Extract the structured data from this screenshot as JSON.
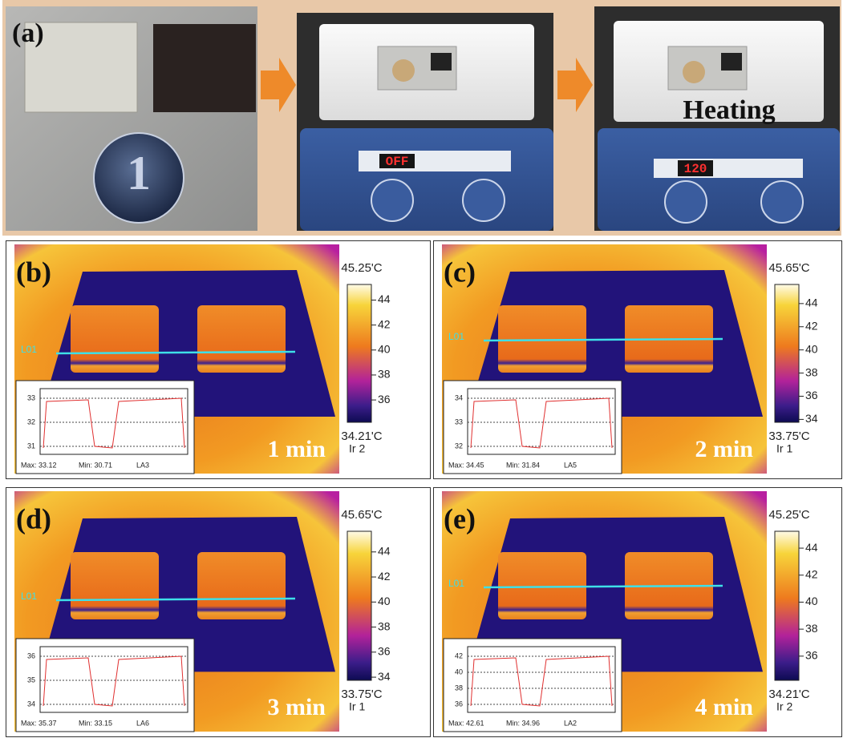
{
  "panel_a": {
    "label": "(a)",
    "heating": "Heating",
    "display_before": "OFF",
    "display_after": "120"
  },
  "panels": [
    {
      "label": "(b)",
      "time": "1 min",
      "max_temp": "45.25'C",
      "min_temp": "34.21'C",
      "source": "Ir 2",
      "line_label": "L01",
      "colorbar_ticks": [
        "44",
        "42",
        "40",
        "38",
        "36"
      ],
      "inset": {
        "yticks": [
          "33",
          "32",
          "31"
        ],
        "stats": [
          "Max: 33.12",
          "Min: 30.71",
          "LA3"
        ]
      }
    },
    {
      "label": "(c)",
      "time": "2 min",
      "max_temp": "45.65'C",
      "min_temp": "33.75'C",
      "source": "Ir 1",
      "line_label": "L01",
      "colorbar_ticks": [
        "44",
        "42",
        "40",
        "38",
        "36",
        "34"
      ],
      "inset": {
        "yticks": [
          "34",
          "33",
          "32"
        ],
        "stats": [
          "Max: 34.45",
          "Min: 31.84",
          "LA5"
        ]
      }
    },
    {
      "label": "(d)",
      "time": "3 min",
      "max_temp": "45.65'C",
      "min_temp": "33.75'C",
      "source": "Ir 1",
      "line_label": "L01",
      "colorbar_ticks": [
        "44",
        "42",
        "40",
        "38",
        "36",
        "34"
      ],
      "inset": {
        "yticks": [
          "36",
          "35",
          "34"
        ],
        "stats": [
          "Max: 35.37",
          "Min: 33.15",
          "LA6"
        ]
      }
    },
    {
      "label": "(e)",
      "time": "4 min",
      "max_temp": "45.25'C",
      "min_temp": "34.21'C",
      "source": "Ir 2",
      "line_label": "L01",
      "colorbar_ticks": [
        "44",
        "42",
        "40",
        "38",
        "36"
      ],
      "inset": {
        "yticks": [
          "42",
          "40",
          "38",
          "36"
        ],
        "stats": [
          "Max: 42.61",
          "Min: 34.96",
          "LA2"
        ]
      }
    }
  ]
}
